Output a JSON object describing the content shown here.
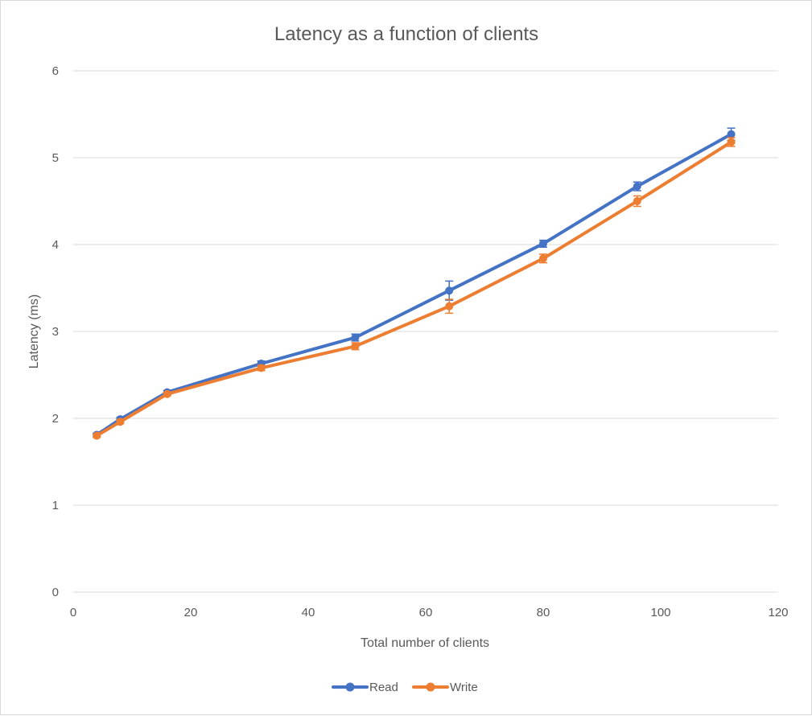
{
  "chart_data": {
    "type": "line",
    "title": "Latency as a function of clients",
    "xlabel": "Total number of clients",
    "ylabel": "Latency (ms)",
    "xlim": [
      0,
      120
    ],
    "ylim": [
      0,
      6
    ],
    "xticks": [
      0,
      20,
      40,
      60,
      80,
      100,
      120
    ],
    "yticks": [
      0,
      1,
      2,
      3,
      4,
      5,
      6
    ],
    "grid": "horizontal",
    "legend_position": "bottom",
    "x": [
      4,
      8,
      16,
      32,
      48,
      64,
      80,
      96,
      112
    ],
    "series": [
      {
        "name": "Read",
        "color": "#4472c4",
        "values": [
          1.81,
          1.99,
          2.3,
          2.63,
          2.93,
          3.47,
          4.01,
          4.67,
          5.27
        ],
        "error": [
          0.02,
          0.02,
          0.02,
          0.03,
          0.04,
          0.11,
          0.04,
          0.05,
          0.07
        ]
      },
      {
        "name": "Write",
        "color": "#ed7d31",
        "values": [
          1.8,
          1.96,
          2.28,
          2.58,
          2.83,
          3.29,
          3.84,
          4.5,
          5.18
        ],
        "error": [
          0.02,
          0.02,
          0.02,
          0.03,
          0.04,
          0.08,
          0.05,
          0.06,
          0.05
        ]
      }
    ]
  }
}
